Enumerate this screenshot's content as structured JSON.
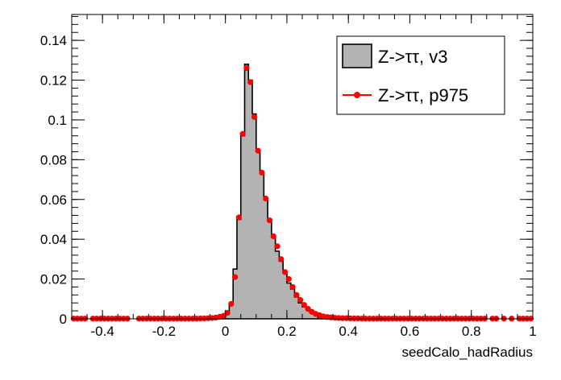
{
  "chart_data": {
    "type": "histogram",
    "title": "",
    "xlabel": "seedCalo_hadRadius",
    "ylabel": "",
    "xlim": [
      -0.5,
      1.0
    ],
    "ylim": [
      0,
      0.153
    ],
    "xticks": [
      -0.4,
      -0.2,
      0,
      0.2,
      0.4,
      0.6,
      0.8,
      1
    ],
    "xtick_labels": [
      "-0.4",
      "-0.2",
      "0",
      "0.2",
      "0.4",
      "0.6",
      "0.8",
      "1"
    ],
    "yticks": [
      0,
      0.02,
      0.04,
      0.06,
      0.08,
      0.1,
      0.12,
      0.14
    ],
    "ytick_labels": [
      "0",
      "0.02",
      "0.04",
      "0.06",
      "0.08",
      "0.1",
      "0.12",
      "0.14"
    ],
    "grid": false,
    "legend_position": "top-right",
    "legend": [
      {
        "label": "Z->ττ, v3",
        "style": "filled-box",
        "color": "#b3b3b3",
        "edge": "#000000"
      },
      {
        "label": "Z->ττ, p975",
        "style": "line-marker",
        "color": "#ff0000"
      }
    ],
    "bin_width": 0.0125,
    "series": [
      {
        "name": "Z->ττ, v3",
        "kind": "filled-histogram",
        "fill": "#b3b3b3",
        "stroke": "#000000",
        "bins_low_edge": [
          -0.0125,
          0.0,
          0.0125,
          0.025,
          0.0375,
          0.05,
          0.0625,
          0.075,
          0.0875,
          0.1,
          0.1125,
          0.125,
          0.1375,
          0.15,
          0.1625,
          0.175,
          0.1875,
          0.2,
          0.2125,
          0.225,
          0.2375,
          0.25,
          0.2625,
          0.275,
          0.2875,
          0.3,
          0.3125,
          0.325,
          0.3375,
          0.35,
          0.3625,
          0.375,
          0.3875,
          0.4
        ],
        "values": [
          0.0015,
          0.003,
          0.007,
          0.025,
          0.05,
          0.092,
          0.128,
          0.12,
          0.103,
          0.085,
          0.073,
          0.06,
          0.05,
          0.042,
          0.034,
          0.029,
          0.023,
          0.018,
          0.015,
          0.011,
          0.008,
          0.006,
          0.0045,
          0.003,
          0.002,
          0.0015,
          0.001,
          0.0007,
          0.0005,
          0.0004,
          0.0003,
          0.0002,
          0.0002,
          0.0001
        ]
      },
      {
        "name": "Z->ττ, p975",
        "kind": "markers",
        "color": "#ff0000",
        "x": [
          -0.5,
          -0.4875,
          -0.475,
          -0.4625,
          -0.4375,
          -0.425,
          -0.4125,
          -0.4,
          -0.3875,
          -0.375,
          -0.3625,
          -0.35,
          -0.3375,
          -0.325,
          -0.2875,
          -0.275,
          -0.2625,
          -0.25,
          -0.2375,
          -0.225,
          -0.2125,
          -0.2,
          -0.1875,
          -0.175,
          -0.1625,
          -0.15,
          -0.1375,
          -0.125,
          -0.1125,
          -0.1,
          -0.0875,
          -0.075,
          -0.0625,
          -0.05,
          -0.0375,
          -0.025,
          -0.0125,
          0.0,
          0.0125,
          0.025,
          0.0375,
          0.05,
          0.0625,
          0.075,
          0.0875,
          0.1,
          0.1125,
          0.125,
          0.1375,
          0.15,
          0.1625,
          0.175,
          0.1875,
          0.2,
          0.2125,
          0.225,
          0.2375,
          0.25,
          0.2625,
          0.275,
          0.2875,
          0.3,
          0.3125,
          0.325,
          0.3375,
          0.35,
          0.3625,
          0.375,
          0.3875,
          0.4,
          0.4125,
          0.425,
          0.4375,
          0.45,
          0.4625,
          0.475,
          0.4875,
          0.5,
          0.5125,
          0.525,
          0.5375,
          0.55,
          0.5625,
          0.575,
          0.5875,
          0.6,
          0.6125,
          0.625,
          0.6375,
          0.65,
          0.6625,
          0.675,
          0.6875,
          0.7,
          0.7125,
          0.725,
          0.7375,
          0.75,
          0.7625,
          0.775,
          0.7875,
          0.8,
          0.8125,
          0.825,
          0.8375,
          0.8625,
          0.875,
          0.9,
          0.925,
          0.95,
          0.9625,
          0.975,
          0.9875
        ],
        "y": [
          0.0001,
          0.0001,
          0.0001,
          0.0001,
          0.0001,
          0.0001,
          0.0001,
          0.0001,
          0.0001,
          0.0001,
          0.0001,
          0.0001,
          0.0001,
          0.0001,
          0.0001,
          0.0001,
          0.0001,
          0.0001,
          0.0001,
          0.0001,
          0.0001,
          0.0001,
          0.0001,
          0.0001,
          0.0001,
          0.0001,
          0.0001,
          0.0001,
          0.0001,
          0.0001,
          0.0002,
          0.0002,
          0.0003,
          0.0004,
          0.0006,
          0.001,
          0.0015,
          0.003,
          0.0075,
          0.021,
          0.051,
          0.093,
          0.126,
          0.119,
          0.1015,
          0.0845,
          0.0735,
          0.0605,
          0.0495,
          0.0415,
          0.0365,
          0.03,
          0.0235,
          0.02,
          0.016,
          0.012,
          0.0095,
          0.007,
          0.005,
          0.0035,
          0.0025,
          0.0018,
          0.0012,
          0.0009,
          0.0007,
          0.0005,
          0.0004,
          0.0003,
          0.0003,
          0.0002,
          0.0002,
          0.0002,
          0.0001,
          0.0001,
          0.0001,
          0.0001,
          0.0001,
          0.0001,
          0.0001,
          0.0001,
          0.0001,
          0.0001,
          0.0001,
          0.0001,
          0.0001,
          0.0001,
          0.0001,
          0.0001,
          0.0001,
          0.0001,
          0.0001,
          0.0001,
          0.0001,
          0.0001,
          0.0001,
          0.0001,
          0.0001,
          0.0001,
          0.0001,
          0.0001,
          0.0001,
          0.0001,
          0.0001,
          0.0001,
          0.0001,
          0.0001,
          0.0001,
          0.0001,
          0.0001,
          0.0001,
          0.0001,
          0.0001,
          0.0001
        ]
      }
    ]
  }
}
